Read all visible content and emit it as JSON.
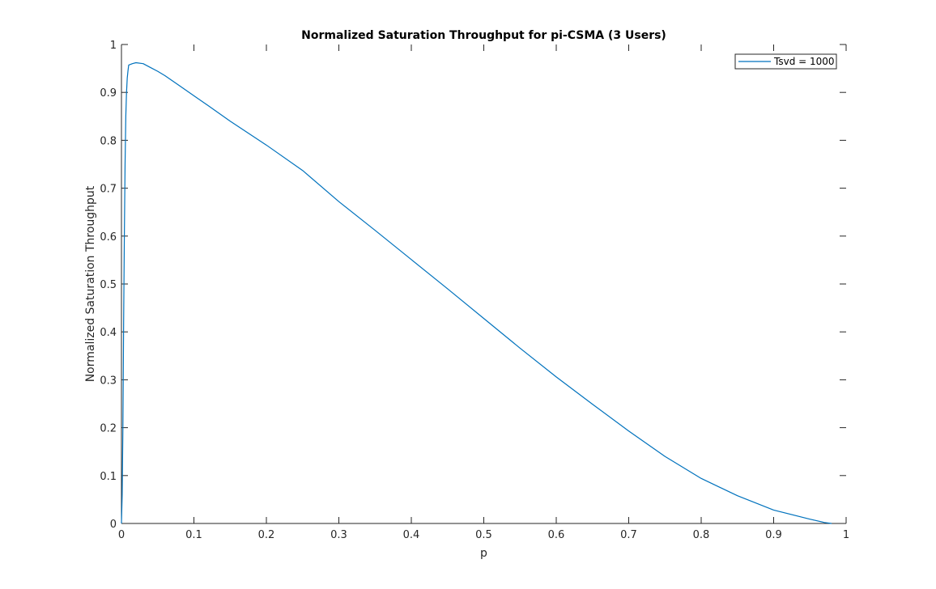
{
  "chart_data": {
    "type": "line",
    "title": "Normalized Saturation Throughput for pi-CSMA (3 Users)",
    "xlabel": "p",
    "ylabel": "Normalized Saturation Throughput",
    "xlim": [
      0,
      1
    ],
    "ylim": [
      0,
      1
    ],
    "xticks": [
      0,
      0.1,
      0.2,
      0.3,
      0.4,
      0.5,
      0.6,
      0.7,
      0.8,
      0.9,
      1
    ],
    "yticks": [
      0,
      0.1,
      0.2,
      0.3,
      0.4,
      0.5,
      0.6,
      0.7,
      0.8,
      0.9,
      1
    ],
    "xtick_labels": [
      "0",
      "0.1",
      "0.2",
      "0.3",
      "0.4",
      "0.5",
      "0.6",
      "0.7",
      "0.8",
      "0.9",
      "1"
    ],
    "ytick_labels": [
      "0",
      "0.1",
      "0.2",
      "0.3",
      "0.4",
      "0.5",
      "0.6",
      "0.7",
      "0.8",
      "0.9",
      "1"
    ],
    "grid": false,
    "legend_position": "top-right",
    "series": [
      {
        "name": "Tsvd = 1000",
        "color": "#0072BD",
        "x": [
          0,
          0.001,
          0.002,
          0.003,
          0.004,
          0.005,
          0.006,
          0.007,
          0.008,
          0.009,
          0.01,
          0.015,
          0.02,
          0.03,
          0.04,
          0.05,
          0.06,
          0.08,
          0.1,
          0.12,
          0.15,
          0.2,
          0.25,
          0.3,
          0.35,
          0.4,
          0.45,
          0.5,
          0.55,
          0.6,
          0.65,
          0.7,
          0.75,
          0.8,
          0.85,
          0.9,
          0.95,
          0.97,
          0.98
        ],
        "y": [
          0.0,
          0.06,
          0.2,
          0.42,
          0.6,
          0.75,
          0.85,
          0.9,
          0.93,
          0.945,
          0.957,
          0.96,
          0.962,
          0.96,
          0.952,
          0.944,
          0.935,
          0.914,
          0.893,
          0.872,
          0.84,
          0.79,
          0.737,
          0.672,
          0.612,
          0.551,
          0.49,
          0.428,
          0.366,
          0.306,
          0.249,
          0.193,
          0.14,
          0.094,
          0.058,
          0.028,
          0.009,
          0.002,
          0.0
        ]
      }
    ]
  }
}
